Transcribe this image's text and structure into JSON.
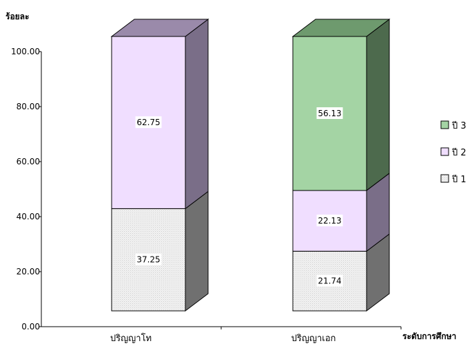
{
  "chart_data": {
    "type": "bar",
    "stacked": true,
    "three_d": true,
    "ylabel": "ร้อยละ",
    "xlabel": "ระดับการศึกษา",
    "ylim": [
      0,
      100
    ],
    "yticks": [
      "0.00",
      "20.00",
      "40.00",
      "60.00",
      "80.00",
      "100.00"
    ],
    "categories": [
      "ปริญญาโท",
      "ปริญญาเอก"
    ],
    "series": [
      {
        "name": "ปี 1",
        "values": [
          37.25,
          21.74
        ],
        "labels": [
          "37.25",
          "21.74"
        ],
        "color": "#e8e8e8",
        "side_color": "#707070",
        "top_color": "#9a9a9a"
      },
      {
        "name": "ปี 2",
        "values": [
          62.75,
          22.13
        ],
        "labels": [
          "62.75",
          "22.13"
        ],
        "color": "#f0deff",
        "side_color": "#7a6e88",
        "top_color": "#9a8aaa"
      },
      {
        "name": "ปี 3",
        "values": [
          null,
          56.13
        ],
        "labels": [
          "",
          "56.13"
        ],
        "color": "#a4d4a4",
        "side_color": "#4d6a4d",
        "top_color": "#6e9a6e"
      }
    ],
    "legend_order": [
      "ปี 3",
      "ปี 2",
      "ปี 1"
    ],
    "legend_position": "right",
    "grid": false
  }
}
